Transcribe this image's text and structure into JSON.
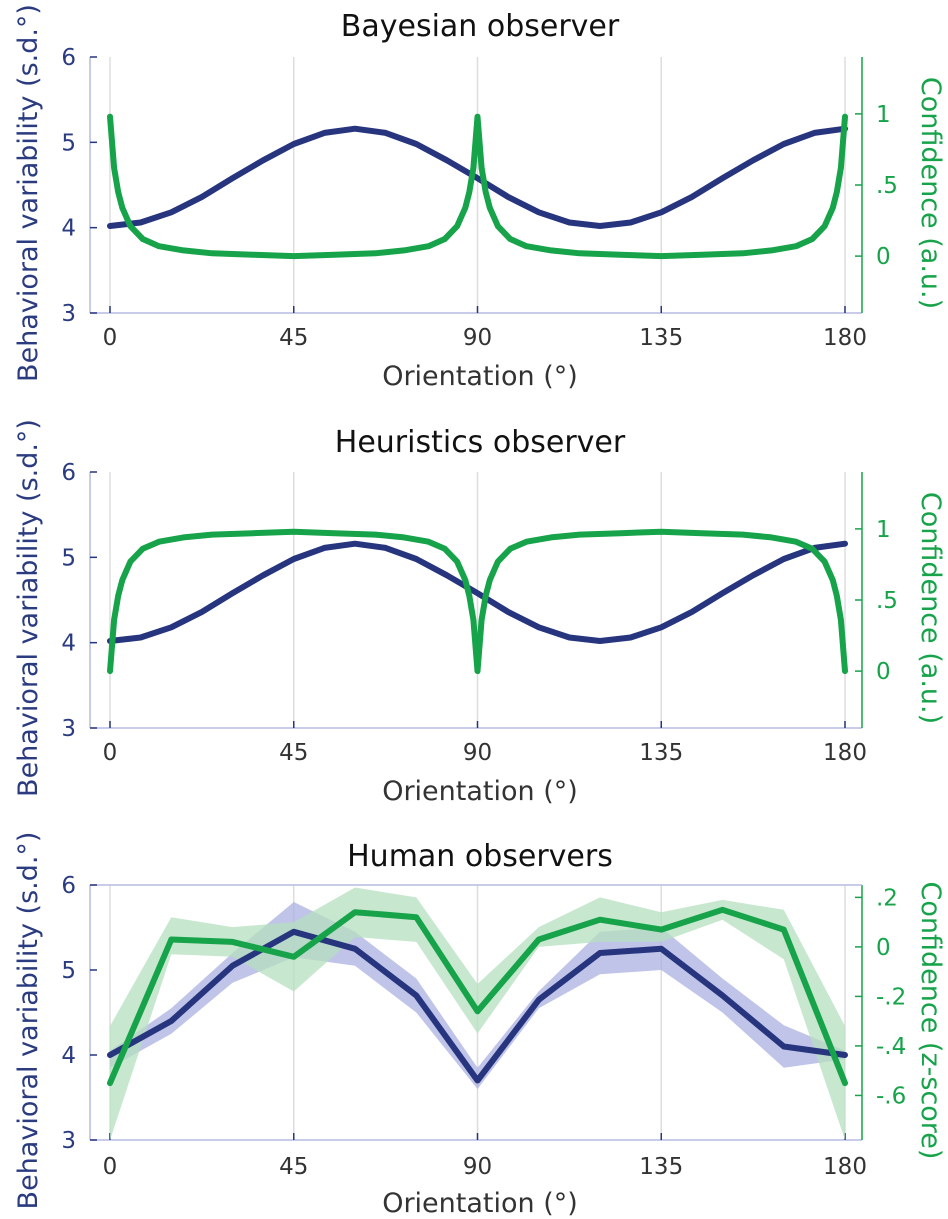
{
  "colors": {
    "variability": "#26357e",
    "variability_band": "#aab0e0",
    "confidence": "#16a34a",
    "confidence_band": "#b5dfbf",
    "grid": "#dddddd",
    "axis_left": "#b7bbe0",
    "axis_right": "#16a34a"
  },
  "chart_data": [
    {
      "type": "line",
      "title": "Bayesian observer",
      "xlabel": "Orientation (°)",
      "ylabel_left": "Behavioral variability (s.d.°)",
      "ylabel_right": "Confidence (a.u.)",
      "x_ticks": [
        "0",
        "45",
        "90",
        "135",
        "180"
      ],
      "y_left_ticks": [
        "3",
        "4",
        "5",
        "6"
      ],
      "y_right_ticks": [
        "0",
        ".5",
        "1"
      ],
      "xlim": [
        0,
        180
      ],
      "ylim_left": [
        3,
        6
      ],
      "ylim_right": [
        -0.4,
        1.4
      ],
      "grid": "vertical",
      "series": [
        {
          "axis": "left",
          "x": [
            0,
            7.5,
            15,
            22.5,
            30,
            37.5,
            45,
            52.5,
            60,
            67.5,
            75,
            82.5,
            90,
            97.5,
            105,
            112.5,
            120,
            127.5,
            135,
            142.5,
            150,
            157.5,
            165,
            172.5,
            180
          ],
          "values": [
            4.02,
            4.06,
            4.18,
            4.36,
            4.58,
            4.79,
            4.98,
            5.11,
            5.16,
            5.11,
            4.98,
            4.79,
            4.58,
            4.36,
            4.18,
            4.06,
            4.02,
            4.06,
            4.18,
            4.36,
            4.58,
            4.79,
            4.98,
            5.11,
            5.16
          ]
        },
        {
          "axis": "right",
          "x": [
            0,
            1,
            2,
            3,
            5,
            8,
            12,
            18,
            25,
            35,
            45,
            55,
            65,
            72,
            78,
            82,
            85,
            87,
            88,
            89,
            90,
            91,
            92,
            93,
            95,
            98,
            102,
            108,
            115,
            125,
            135,
            145,
            155,
            162,
            168,
            172,
            175,
            177,
            178,
            179,
            180
          ],
          "values": [
            0.98,
            0.62,
            0.45,
            0.34,
            0.21,
            0.12,
            0.07,
            0.04,
            0.02,
            0.01,
            0.0,
            0.01,
            0.02,
            0.04,
            0.07,
            0.12,
            0.21,
            0.34,
            0.45,
            0.62,
            0.98,
            0.62,
            0.45,
            0.34,
            0.21,
            0.12,
            0.07,
            0.04,
            0.02,
            0.01,
            0.0,
            0.01,
            0.02,
            0.04,
            0.07,
            0.12,
            0.21,
            0.34,
            0.45,
            0.62,
            0.98
          ]
        }
      ]
    },
    {
      "type": "line",
      "title": "Heuristics observer",
      "xlabel": "Orientation (°)",
      "ylabel_left": "Behavioral variability (s.d.°)",
      "ylabel_right": "Confidence (a.u.)",
      "x_ticks": [
        "0",
        "45",
        "90",
        "135",
        "180"
      ],
      "y_left_ticks": [
        "3",
        "4",
        "5",
        "6"
      ],
      "y_right_ticks": [
        "0",
        ".5",
        "1"
      ],
      "xlim": [
        0,
        180
      ],
      "ylim_left": [
        3,
        6
      ],
      "ylim_right": [
        -0.4,
        1.4
      ],
      "grid": "vertical",
      "series": [
        {
          "axis": "left",
          "x": [
            0,
            7.5,
            15,
            22.5,
            30,
            37.5,
            45,
            52.5,
            60,
            67.5,
            75,
            82.5,
            90,
            97.5,
            105,
            112.5,
            120,
            127.5,
            135,
            142.5,
            150,
            157.5,
            165,
            172.5,
            180
          ],
          "values": [
            4.02,
            4.06,
            4.18,
            4.36,
            4.58,
            4.79,
            4.98,
            5.11,
            5.16,
            5.11,
            4.98,
            4.79,
            4.58,
            4.36,
            4.18,
            4.06,
            4.02,
            4.06,
            4.18,
            4.36,
            4.58,
            4.79,
            4.98,
            5.11,
            5.16
          ]
        },
        {
          "axis": "right",
          "x": [
            0,
            1,
            2,
            3,
            5,
            8,
            12,
            18,
            25,
            35,
            45,
            55,
            65,
            72,
            78,
            82,
            85,
            87,
            88,
            89,
            90,
            91,
            92,
            93,
            95,
            98,
            102,
            108,
            115,
            125,
            135,
            145,
            155,
            162,
            168,
            172,
            175,
            177,
            178,
            179,
            180
          ],
          "values": [
            0.0,
            0.36,
            0.53,
            0.64,
            0.77,
            0.86,
            0.91,
            0.94,
            0.96,
            0.97,
            0.98,
            0.97,
            0.96,
            0.94,
            0.91,
            0.86,
            0.77,
            0.64,
            0.53,
            0.36,
            0.0,
            0.36,
            0.53,
            0.64,
            0.77,
            0.86,
            0.91,
            0.94,
            0.96,
            0.97,
            0.98,
            0.97,
            0.96,
            0.94,
            0.91,
            0.86,
            0.77,
            0.64,
            0.53,
            0.36,
            0.0
          ]
        }
      ]
    },
    {
      "type": "line",
      "title": "Human observers",
      "xlabel": "Orientation (°)",
      "ylabel_left": "Behavioral variability (s.d.°)",
      "ylabel_right": "Confidence (z-score)",
      "x_ticks": [
        "0",
        "45",
        "90",
        "135",
        "180"
      ],
      "y_left_ticks": [
        "3",
        "4",
        "5",
        "6"
      ],
      "y_right_ticks": [
        "-.6",
        "-.4",
        "-.2",
        "0",
        ".2"
      ],
      "xlim": [
        0,
        180
      ],
      "ylim_left": [
        3,
        6
      ],
      "ylim_right": [
        -0.78,
        0.25
      ],
      "grid": "vertical",
      "series": [
        {
          "axis": "left",
          "x": [
            0,
            15,
            30,
            45,
            60,
            75,
            90,
            105,
            120,
            135,
            150,
            165,
            180
          ],
          "values": [
            4.0,
            4.4,
            5.05,
            5.45,
            5.25,
            4.7,
            3.7,
            4.65,
            5.2,
            5.25,
            4.7,
            4.1,
            4.0
          ],
          "lower": [
            3.85,
            4.25,
            4.85,
            5.15,
            5.05,
            4.5,
            3.6,
            4.55,
            4.95,
            5.0,
            4.5,
            3.85,
            3.95
          ],
          "upper": [
            4.05,
            4.55,
            5.2,
            5.8,
            5.45,
            4.9,
            3.85,
            4.75,
            5.45,
            5.5,
            4.9,
            4.35,
            4.05
          ]
        },
        {
          "axis": "right",
          "x": [
            0,
            15,
            30,
            45,
            60,
            75,
            90,
            105,
            120,
            135,
            150,
            165,
            180
          ],
          "values": [
            -0.55,
            0.03,
            0.02,
            -0.04,
            0.14,
            0.12,
            -0.26,
            0.03,
            0.11,
            0.07,
            0.15,
            0.07,
            -0.55
          ],
          "lower": [
            -0.78,
            -0.03,
            -0.04,
            -0.18,
            0.04,
            0.02,
            -0.35,
            0.0,
            0.02,
            0.02,
            0.11,
            -0.05,
            -0.78
          ],
          "upper": [
            -0.32,
            0.12,
            0.08,
            0.1,
            0.24,
            0.2,
            -0.15,
            0.08,
            0.2,
            0.14,
            0.19,
            0.15,
            -0.32
          ]
        }
      ]
    }
  ]
}
